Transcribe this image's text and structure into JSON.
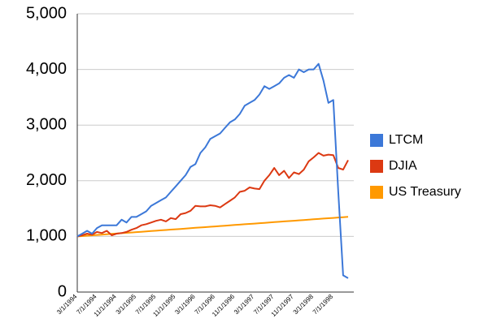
{
  "chart_data": {
    "type": "line",
    "categories": [
      "3/1/1994",
      null,
      null,
      null,
      "7/1/1994",
      null,
      null,
      null,
      "11/1/1994",
      null,
      null,
      null,
      "3/1/1995",
      null,
      null,
      null,
      "7/1/1995",
      null,
      null,
      null,
      "11/1/1995",
      null,
      null,
      null,
      "3/1/1996",
      null,
      null,
      null,
      "7/1/1996",
      null,
      null,
      null,
      "11/1/1996",
      null,
      null,
      null,
      "3/1/1997",
      null,
      null,
      null,
      "7/1/1997",
      null,
      null,
      null,
      "11/1/1997",
      null,
      null,
      null,
      "3/1/1998",
      null,
      null,
      null,
      "7/1/1998",
      null,
      null,
      null
    ],
    "series": [
      {
        "name": "LTCM",
        "color": "#3c78d8",
        "values": [
          1000,
          1050,
          1100,
          1050,
          1150,
          1200,
          1200,
          1200,
          1200,
          1300,
          1250,
          1350,
          1350,
          1400,
          1450,
          1550,
          1600,
          1650,
          1700,
          1800,
          1900,
          2000,
          2100,
          2250,
          2300,
          2500,
          2600,
          2750,
          2800,
          2850,
          2950,
          3050,
          3100,
          3200,
          3350,
          3400,
          3450,
          3550,
          3700,
          3650,
          3700,
          3750,
          3850,
          3900,
          3850,
          4000,
          3950,
          4000,
          4000,
          4100,
          3800,
          3400,
          3450,
          1800,
          300,
          250
        ]
      },
      {
        "name": "DJIA",
        "color": "#dc3912",
        "values": [
          1000,
          1020,
          1050,
          1030,
          1080,
          1060,
          1100,
          1020,
          1050,
          1060,
          1080,
          1120,
          1150,
          1200,
          1220,
          1250,
          1280,
          1300,
          1270,
          1330,
          1310,
          1400,
          1420,
          1460,
          1550,
          1540,
          1540,
          1560,
          1550,
          1520,
          1580,
          1640,
          1700,
          1800,
          1820,
          1880,
          1860,
          1850,
          2000,
          2100,
          2230,
          2100,
          2180,
          2050,
          2150,
          2120,
          2200,
          2350,
          2420,
          2500,
          2450,
          2470,
          2460,
          2230,
          2200,
          2370
        ]
      },
      {
        "name": "US Treasury",
        "color": "#ff9900",
        "values": [
          1000,
          1006,
          1013,
          1019,
          1026,
          1032,
          1038,
          1045,
          1051,
          1058,
          1064,
          1070,
          1077,
          1083,
          1090,
          1096,
          1102,
          1109,
          1115,
          1122,
          1128,
          1134,
          1141,
          1147,
          1154,
          1160,
          1166,
          1173,
          1179,
          1186,
          1192,
          1198,
          1205,
          1211,
          1218,
          1224,
          1230,
          1237,
          1243,
          1250,
          1256,
          1262,
          1269,
          1275,
          1282,
          1288,
          1294,
          1301,
          1307,
          1314,
          1320,
          1326,
          1333,
          1339,
          1346,
          1352
        ]
      }
    ],
    "ylim": [
      0,
      5000
    ],
    "yticks": [
      0,
      {
        "value": 1000,
        "label": "1,000"
      },
      {
        "value": 2000,
        "label": "2,000"
      },
      {
        "value": 3000,
        "label": "3,000"
      },
      {
        "value": 4000,
        "label": "4,000"
      },
      {
        "value": 5000,
        "label": "5,000"
      }
    ],
    "grid": true,
    "legend": "right"
  }
}
